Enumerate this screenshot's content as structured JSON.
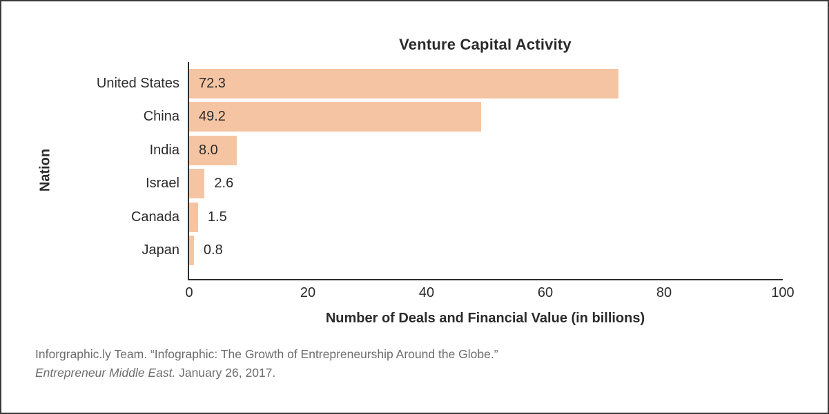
{
  "chart_data": {
    "type": "bar",
    "orientation": "horizontal",
    "title": "Venture Capital Activity",
    "categories": [
      "United States",
      "China",
      "India",
      "Israel",
      "Canada",
      "Japan"
    ],
    "values": [
      72.3,
      49.2,
      8.0,
      2.6,
      1.5,
      0.8
    ],
    "value_labels": [
      "72.3",
      "49.2",
      "8.0",
      "2.6",
      "1.5",
      "0.8"
    ],
    "xlabel": "Number of Deals and Financial Value (in billions)",
    "ylabel": "Nation",
    "xlim": [
      0,
      100
    ],
    "x_ticks": [
      0,
      20,
      40,
      60,
      80,
      100
    ],
    "grid": false,
    "legend": "none",
    "bar_color": "#F5C5A3",
    "axis_color": "#2d2d2d",
    "text_color": "#2b2b2b",
    "citation_color": "#6d6d6d"
  },
  "citation": {
    "line1": "Inforgraphic.ly Team. “Infographic: The Growth of Entrepreneurship Around the Globe.”",
    "line2_italic": "Entrepreneur Middle East.",
    "line2_rest": " January 26, 2017."
  }
}
